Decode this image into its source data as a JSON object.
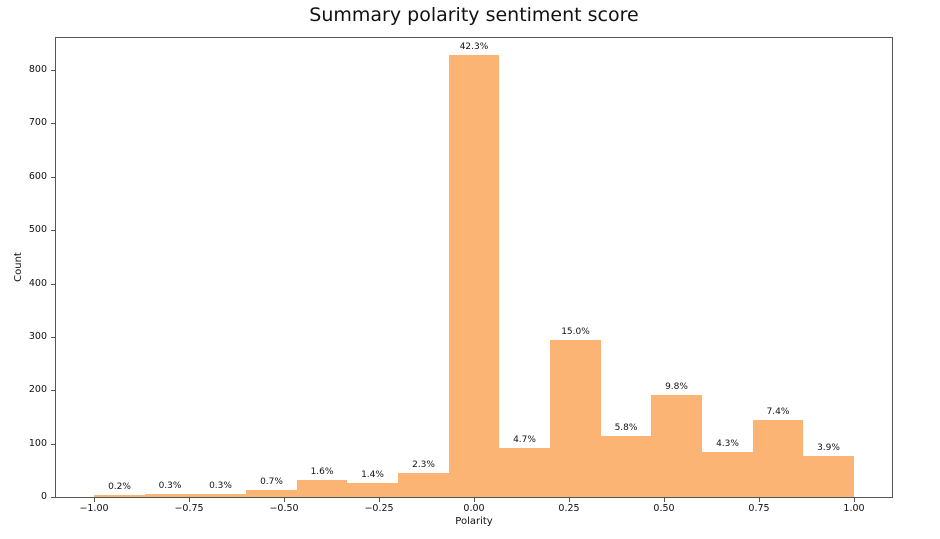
{
  "chart_data": {
    "type": "bar",
    "subtype": "histogram",
    "title": "Summary polarity sentiment score",
    "xlabel": "Polarity",
    "ylabel": "Count",
    "xlim": [
      -1.1,
      1.1
    ],
    "ylim": [
      0,
      860
    ],
    "grid": false,
    "legend": null,
    "bar_color": "#FCB474",
    "axis_color": "#555555",
    "text_color": "#111111",
    "x_ticks": [
      {
        "v": -1.0,
        "label": "−1.00"
      },
      {
        "v": -0.75,
        "label": "−0.75"
      },
      {
        "v": -0.5,
        "label": "−0.50"
      },
      {
        "v": -0.25,
        "label": "−0.25"
      },
      {
        "v": 0.0,
        "label": "0.00"
      },
      {
        "v": 0.25,
        "label": "0.25"
      },
      {
        "v": 0.5,
        "label": "0.50"
      },
      {
        "v": 0.75,
        "label": "0.75"
      },
      {
        "v": 1.0,
        "label": "1.00"
      }
    ],
    "y_ticks": [
      {
        "v": 0,
        "label": "0"
      },
      {
        "v": 100,
        "label": "100"
      },
      {
        "v": 200,
        "label": "200"
      },
      {
        "v": 300,
        "label": "300"
      },
      {
        "v": 400,
        "label": "400"
      },
      {
        "v": 500,
        "label": "500"
      },
      {
        "v": 600,
        "label": "600"
      },
      {
        "v": 700,
        "label": "700"
      },
      {
        "v": 800,
        "label": "800"
      }
    ],
    "bars": [
      {
        "from": -1.0,
        "to": -0.8667,
        "count": 4,
        "pct": "0.2%"
      },
      {
        "from": -0.8667,
        "to": -0.7333,
        "count": 6,
        "pct": "0.3%"
      },
      {
        "from": -0.7333,
        "to": -0.6,
        "count": 6,
        "pct": "0.3%"
      },
      {
        "from": -0.6,
        "to": -0.4667,
        "count": 14,
        "pct": "0.7%"
      },
      {
        "from": -0.4667,
        "to": -0.3333,
        "count": 31,
        "pct": "1.6%"
      },
      {
        "from": -0.3333,
        "to": -0.2,
        "count": 27,
        "pct": "1.4%"
      },
      {
        "from": -0.2,
        "to": -0.0667,
        "count": 45,
        "pct": "2.3%"
      },
      {
        "from": -0.0667,
        "to": 0.0667,
        "count": 828,
        "pct": "42.3%"
      },
      {
        "from": 0.0667,
        "to": 0.2,
        "count": 92,
        "pct": "4.7%"
      },
      {
        "from": 0.2,
        "to": 0.3333,
        "count": 294,
        "pct": "15.0%"
      },
      {
        "from": 0.3333,
        "to": 0.4667,
        "count": 114,
        "pct": "5.8%"
      },
      {
        "from": 0.4667,
        "to": 0.6,
        "count": 192,
        "pct": "9.8%"
      },
      {
        "from": 0.6,
        "to": 0.7333,
        "count": 84,
        "pct": "4.3%"
      },
      {
        "from": 0.7333,
        "to": 0.8667,
        "count": 145,
        "pct": "7.4%"
      },
      {
        "from": 0.8667,
        "to": 1.0,
        "count": 76,
        "pct": "3.9%"
      }
    ]
  }
}
